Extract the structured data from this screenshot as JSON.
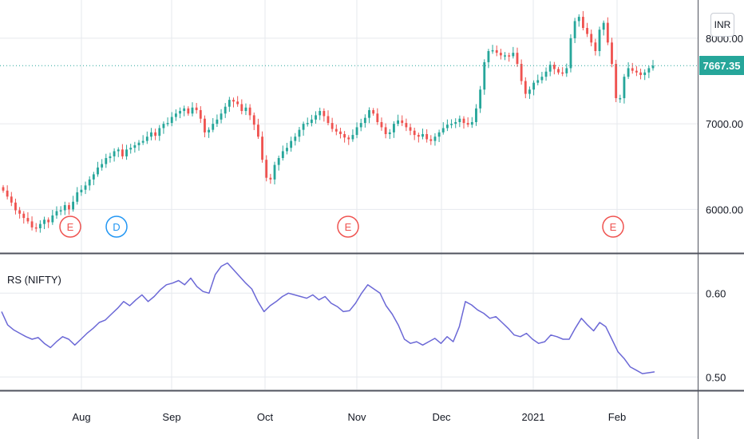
{
  "currency": "INR",
  "last_price": "7667.35",
  "indicator_label": "RS (NIFTY)",
  "colors": {
    "up": "#26a69a",
    "down": "#ef5350",
    "rs_line": "#6b68d6",
    "event_earnings": "#ef5350",
    "event_dividend": "#2196f3"
  },
  "chart_data": [
    {
      "type": "candlestick",
      "title": "",
      "price_axis_ticks": [
        "8000.00",
        "7000.00",
        "6000.00"
      ],
      "ylim": [
        5500,
        8400
      ],
      "x_tick_labels": [
        "Aug",
        "Sep",
        "Oct",
        "Nov",
        "Dec",
        "2021",
        "Feb"
      ],
      "close_series": [
        6220,
        6150,
        6080,
        5990,
        5950,
        5900,
        5860,
        5790,
        5780,
        5830,
        5880,
        5850,
        5930,
        5980,
        5990,
        6050,
        6000,
        6090,
        6200,
        6230,
        6280,
        6350,
        6410,
        6490,
        6530,
        6600,
        6620,
        6680,
        6700,
        6620,
        6700,
        6720,
        6750,
        6780,
        6800,
        6850,
        6900,
        6860,
        6950,
        7000,
        7010,
        7080,
        7120,
        7150,
        7180,
        7120,
        7190,
        7160,
        7060,
        6900,
        6930,
        7000,
        7050,
        7120,
        7200,
        7280,
        7260,
        7230,
        7150,
        7190,
        7100,
        6990,
        6850,
        6580,
        6370,
        6350,
        6520,
        6600,
        6680,
        6720,
        6800,
        6850,
        6930,
        7000,
        7010,
        7050,
        7100,
        7150,
        7090,
        7010,
        6940,
        6910,
        6880,
        6840,
        6820,
        6870,
        6960,
        7010,
        7070,
        7160,
        7120,
        7020,
        6960,
        6880,
        6900,
        7000,
        7040,
        7010,
        6960,
        6920,
        6870,
        6850,
        6880,
        6820,
        6800,
        6850,
        6900,
        6950,
        6990,
        7000,
        7020,
        7060,
        7010,
        6990,
        7020,
        7180,
        7400,
        7720,
        7850,
        7860,
        7830,
        7800,
        7800,
        7790,
        7830,
        7700,
        7500,
        7350,
        7400,
        7480,
        7510,
        7550,
        7610,
        7690,
        7640,
        7600,
        7590,
        7650,
        8000,
        8200,
        8250,
        8120,
        8050,
        7950,
        7850,
        8100,
        8180,
        7950,
        7700,
        7300,
        7300,
        7550,
        7650,
        7620,
        7600,
        7570,
        7600,
        7650,
        7680
      ],
      "events": [
        {
          "label": "E",
          "type": "earnings"
        },
        {
          "label": "D",
          "type": "dividend"
        },
        {
          "label": "E",
          "type": "earnings"
        },
        {
          "label": "E",
          "type": "earnings"
        }
      ]
    },
    {
      "type": "line",
      "name": "RS (NIFTY)",
      "y_axis_ticks": [
        "0.60",
        "0.50"
      ],
      "ylim": [
        0.485,
        0.645
      ],
      "values": [
        0.578,
        0.562,
        0.556,
        0.552,
        0.548,
        0.545,
        0.547,
        0.54,
        0.535,
        0.542,
        0.548,
        0.545,
        0.538,
        0.545,
        0.552,
        0.558,
        0.565,
        0.568,
        0.575,
        0.582,
        0.59,
        0.585,
        0.592,
        0.598,
        0.59,
        0.596,
        0.604,
        0.61,
        0.612,
        0.615,
        0.61,
        0.618,
        0.608,
        0.602,
        0.6,
        0.622,
        0.632,
        0.636,
        0.628,
        0.62,
        0.612,
        0.605,
        0.59,
        0.578,
        0.585,
        0.59,
        0.596,
        0.6,
        0.598,
        0.596,
        0.594,
        0.598,
        0.592,
        0.596,
        0.588,
        0.584,
        0.578,
        0.579,
        0.588,
        0.6,
        0.61,
        0.605,
        0.6,
        0.585,
        0.575,
        0.562,
        0.545,
        0.54,
        0.542,
        0.538,
        0.542,
        0.546,
        0.54,
        0.548,
        0.542,
        0.56,
        0.59,
        0.586,
        0.58,
        0.576,
        0.57,
        0.572,
        0.565,
        0.558,
        0.55,
        0.548,
        0.552,
        0.545,
        0.54,
        0.542,
        0.55,
        0.548,
        0.545,
        0.545,
        0.558,
        0.57,
        0.562,
        0.555,
        0.565,
        0.56,
        0.545,
        0.53,
        0.522,
        0.512,
        0.508,
        0.504,
        0.505,
        0.506
      ]
    }
  ]
}
